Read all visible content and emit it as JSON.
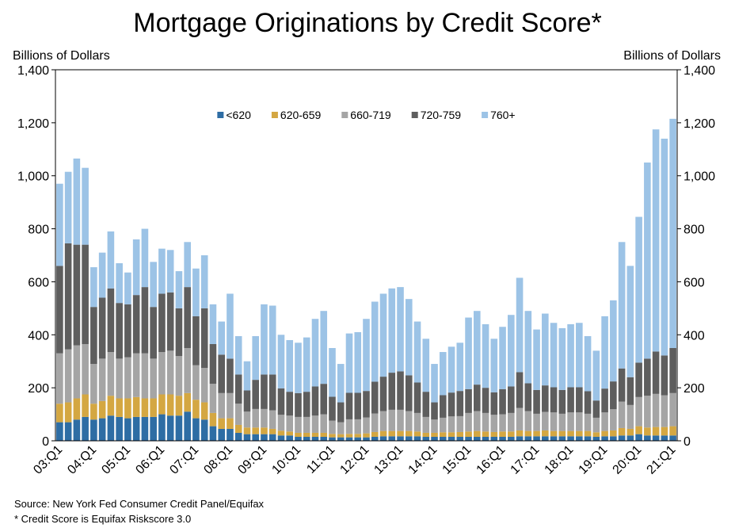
{
  "chart_data": {
    "type": "stacked_bar",
    "title": "Mortgage Originations by Credit Score*",
    "y_label": "Billions of Dollars",
    "y2_label": "Billions of Dollars",
    "source": "Source: New York Fed Consumer Credit Panel/Equifax",
    "note": "* Credit Score is Equifax Riskscore 3.0",
    "legend": "top",
    "grid": false,
    "ylim": [
      0,
      1400
    ],
    "yticks": [
      0,
      200,
      400,
      600,
      800,
      {
        "value": 1000,
        "label": "1,000"
      },
      {
        "value": 1200,
        "label": "1,200"
      },
      {
        "value": 1400,
        "label": "1,400"
      }
    ],
    "y2lim": [
      0,
      1400
    ],
    "y2ticks": [
      0,
      200,
      400,
      600,
      800,
      {
        "value": 1000,
        "label": "1,000"
      },
      {
        "value": 1200,
        "label": "1,200"
      },
      {
        "value": 1400,
        "label": "1,400"
      }
    ],
    "categories": [
      "03:Q1",
      null,
      null,
      null,
      "04:Q1",
      null,
      null,
      null,
      "05:Q1",
      null,
      null,
      null,
      "06:Q1",
      null,
      null,
      null,
      "07:Q1",
      null,
      null,
      null,
      "08:Q1",
      null,
      null,
      null,
      "09:Q1",
      null,
      null,
      null,
      "10:Q1",
      null,
      null,
      null,
      "11:Q1",
      null,
      null,
      null,
      "12:Q1",
      null,
      null,
      null,
      "13:Q1",
      null,
      null,
      null,
      "14:Q1",
      null,
      null,
      null,
      "15:Q1",
      null,
      null,
      null,
      "16:Q1",
      null,
      null,
      null,
      "17:Q1",
      null,
      null,
      null,
      "18:Q1",
      null,
      null,
      null,
      "19:Q1",
      null,
      null,
      null,
      "20:Q1",
      null,
      null,
      null,
      "21:Q1"
    ],
    "series": [
      {
        "name": "<620",
        "color": "#2e6da4",
        "values": [
          70,
          70,
          80,
          90,
          80,
          85,
          95,
          90,
          85,
          90,
          90,
          90,
          100,
          95,
          95,
          110,
          85,
          80,
          55,
          45,
          45,
          30,
          25,
          25,
          25,
          25,
          20,
          20,
          15,
          15,
          15,
          15,
          13,
          13,
          13,
          13,
          13,
          15,
          17,
          17,
          17,
          17,
          17,
          15,
          15,
          15,
          15,
          15,
          15,
          15,
          15,
          15,
          15,
          15,
          17,
          17,
          17,
          17,
          17,
          17,
          17,
          17,
          17,
          15,
          17,
          17,
          20,
          20,
          25,
          20,
          20,
          20,
          20
        ]
      },
      {
        "name": "620-659",
        "color": "#d4a742",
        "values": [
          70,
          75,
          80,
          85,
          60,
          65,
          75,
          70,
          75,
          75,
          70,
          70,
          75,
          80,
          75,
          70,
          70,
          65,
          50,
          40,
          40,
          30,
          25,
          25,
          25,
          20,
          18,
          15,
          15,
          15,
          15,
          15,
          13,
          12,
          13,
          13,
          15,
          18,
          20,
          20,
          20,
          20,
          18,
          15,
          15,
          17,
          17,
          18,
          20,
          22,
          20,
          18,
          20,
          20,
          22,
          20,
          20,
          22,
          20,
          20,
          20,
          20,
          20,
          17,
          20,
          22,
          28,
          25,
          30,
          30,
          32,
          32,
          35
        ]
      },
      {
        "name": "660-719",
        "color": "#a5a5a5",
        "values": [
          190,
          200,
          200,
          190,
          150,
          160,
          165,
          150,
          155,
          165,
          170,
          150,
          160,
          165,
          150,
          170,
          130,
          130,
          110,
          95,
          95,
          80,
          60,
          70,
          70,
          70,
          60,
          60,
          60,
          60,
          65,
          70,
          50,
          45,
          55,
          55,
          60,
          70,
          75,
          80,
          80,
          75,
          70,
          60,
          50,
          55,
          60,
          60,
          70,
          75,
          70,
          65,
          65,
          70,
          85,
          75,
          65,
          70,
          70,
          65,
          70,
          70,
          65,
          55,
          70,
          80,
          100,
          90,
          110,
          120,
          125,
          120,
          125
        ]
      },
      {
        "name": "720-759",
        "color": "#5e5e5e",
        "values": [
          330,
          400,
          380,
          375,
          215,
          230,
          240,
          210,
          200,
          220,
          250,
          195,
          220,
          220,
          180,
          230,
          185,
          225,
          150,
          145,
          130,
          110,
          80,
          110,
          130,
          135,
          100,
          90,
          90,
          95,
          110,
          115,
          90,
          75,
          100,
          100,
          100,
          120,
          130,
          140,
          145,
          135,
          115,
          95,
          65,
          85,
          90,
          95,
          90,
          100,
          95,
          85,
          95,
          100,
          135,
          105,
          90,
          100,
          95,
          90,
          95,
          95,
          85,
          65,
          90,
          105,
          125,
          105,
          130,
          140,
          160,
          150,
          170
        ]
      },
      {
        "name": "760+",
        "color": "#9cc3e6",
        "values": [
          310,
          270,
          325,
          290,
          150,
          170,
          215,
          150,
          120,
          210,
          220,
          170,
          170,
          160,
          140,
          170,
          180,
          200,
          150,
          125,
          245,
          145,
          110,
          165,
          265,
          260,
          202,
          195,
          190,
          205,
          255,
          275,
          184,
          145,
          224,
          229,
          272,
          302,
          313,
          318,
          318,
          288,
          230,
          200,
          145,
          163,
          173,
          182,
          270,
          278,
          240,
          202,
          235,
          270,
          356,
          273,
          228,
          271,
          243,
          233,
          238,
          243,
          208,
          188,
          273,
          306,
          477,
          420,
          550,
          740,
          838,
          818,
          865
        ]
      }
    ]
  }
}
